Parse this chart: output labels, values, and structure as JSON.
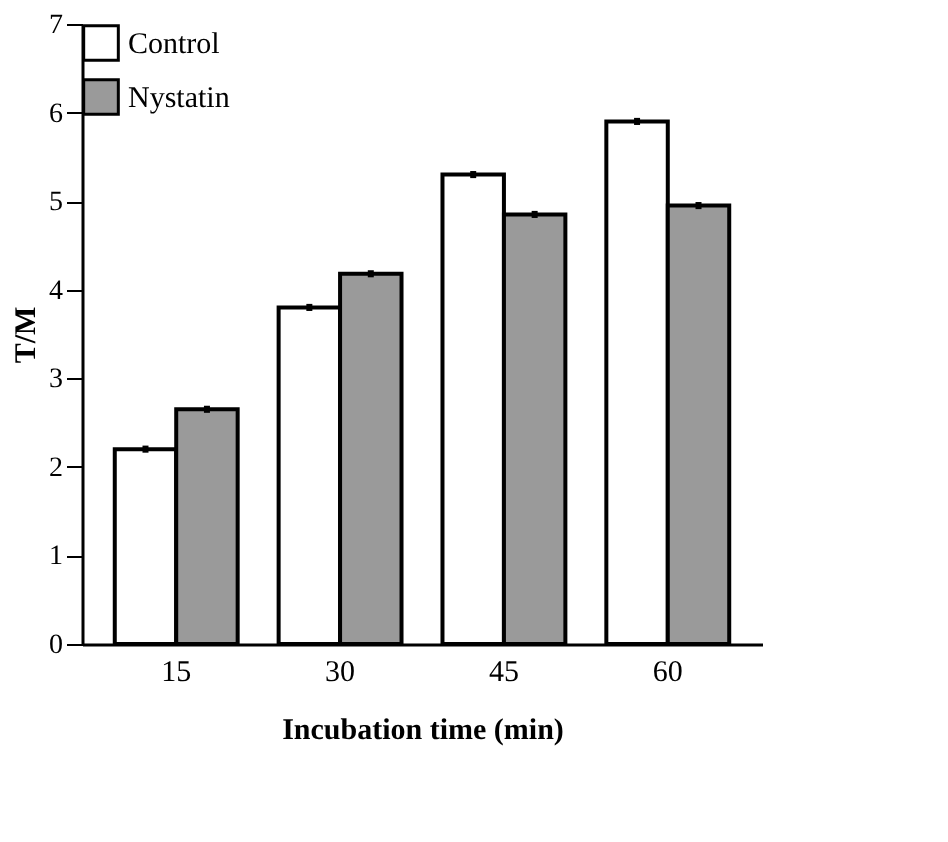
{
  "chart_data": {
    "type": "bar",
    "xlabel": "Incubation time (min)",
    "ylabel": "T/M",
    "categories": [
      "15",
      "30",
      "45",
      "60"
    ],
    "series": [
      {
        "name": "Control",
        "color": "#ffffff",
        "values": [
          2.2,
          3.8,
          5.3,
          5.9
        ],
        "errors": [
          0.04,
          0.04,
          0.04,
          0.04
        ]
      },
      {
        "name": "Nystatin",
        "color": "#9a9a9a",
        "values": [
          2.65,
          4.18,
          4.85,
          4.95
        ],
        "errors": [
          0.04,
          0.04,
          0.04,
          0.04
        ]
      }
    ],
    "ylim": [
      0,
      7
    ],
    "yticks": [
      0,
      1,
      2,
      3,
      4,
      5,
      6,
      7
    ],
    "grid": false,
    "legend": "top left"
  }
}
